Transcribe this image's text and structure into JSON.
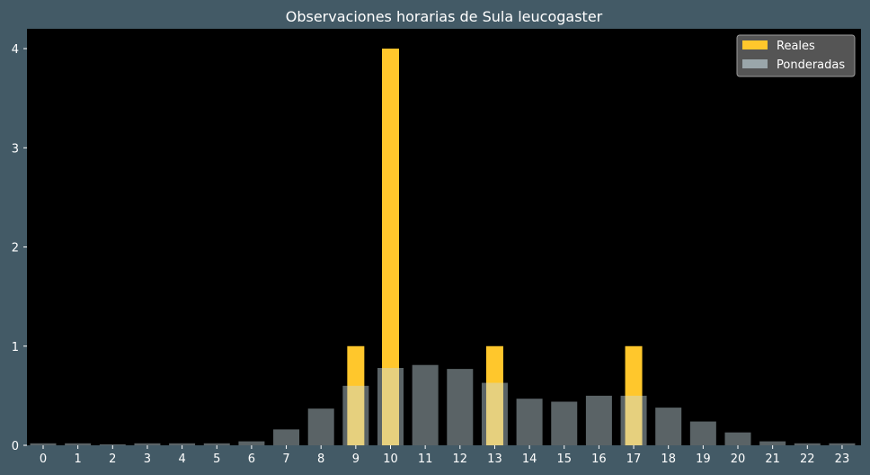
{
  "chart_data": {
    "type": "bar",
    "title": "Observaciones horarias de Sula leucogaster",
    "xlabel": "",
    "ylabel": "",
    "categories": [
      "0",
      "1",
      "2",
      "3",
      "4",
      "5",
      "6",
      "7",
      "8",
      "9",
      "10",
      "11",
      "12",
      "13",
      "14",
      "15",
      "16",
      "17",
      "18",
      "19",
      "20",
      "21",
      "22",
      "23"
    ],
    "y_ticks": [
      "0",
      "1",
      "2",
      "3",
      "4"
    ],
    "ylim": [
      0,
      4.2
    ],
    "grid": false,
    "legend_position": "top-right",
    "series": [
      {
        "name": "Reales",
        "color": "#ffc72c",
        "values": [
          0,
          0,
          0,
          0,
          0,
          0,
          0,
          0,
          0,
          1,
          4,
          0,
          0,
          1,
          0,
          0,
          0,
          1,
          0,
          0,
          0,
          0,
          0,
          0
        ]
      },
      {
        "name": "Ponderadas",
        "color": "#c8dce3",
        "opacity": 0.45,
        "values": [
          0.02,
          0.02,
          0.01,
          0.02,
          0.02,
          0.02,
          0.04,
          0.16,
          0.37,
          0.6,
          0.78,
          0.81,
          0.77,
          0.63,
          0.47,
          0.44,
          0.5,
          0.5,
          0.38,
          0.24,
          0.13,
          0.04,
          0.02,
          0.02
        ]
      }
    ],
    "colors": {
      "figure_background": "#435a66",
      "plot_background": "#000000",
      "text": "#ffffff",
      "legend_background": "#5a5a5a",
      "legend_border": "#9a9a9a"
    }
  }
}
